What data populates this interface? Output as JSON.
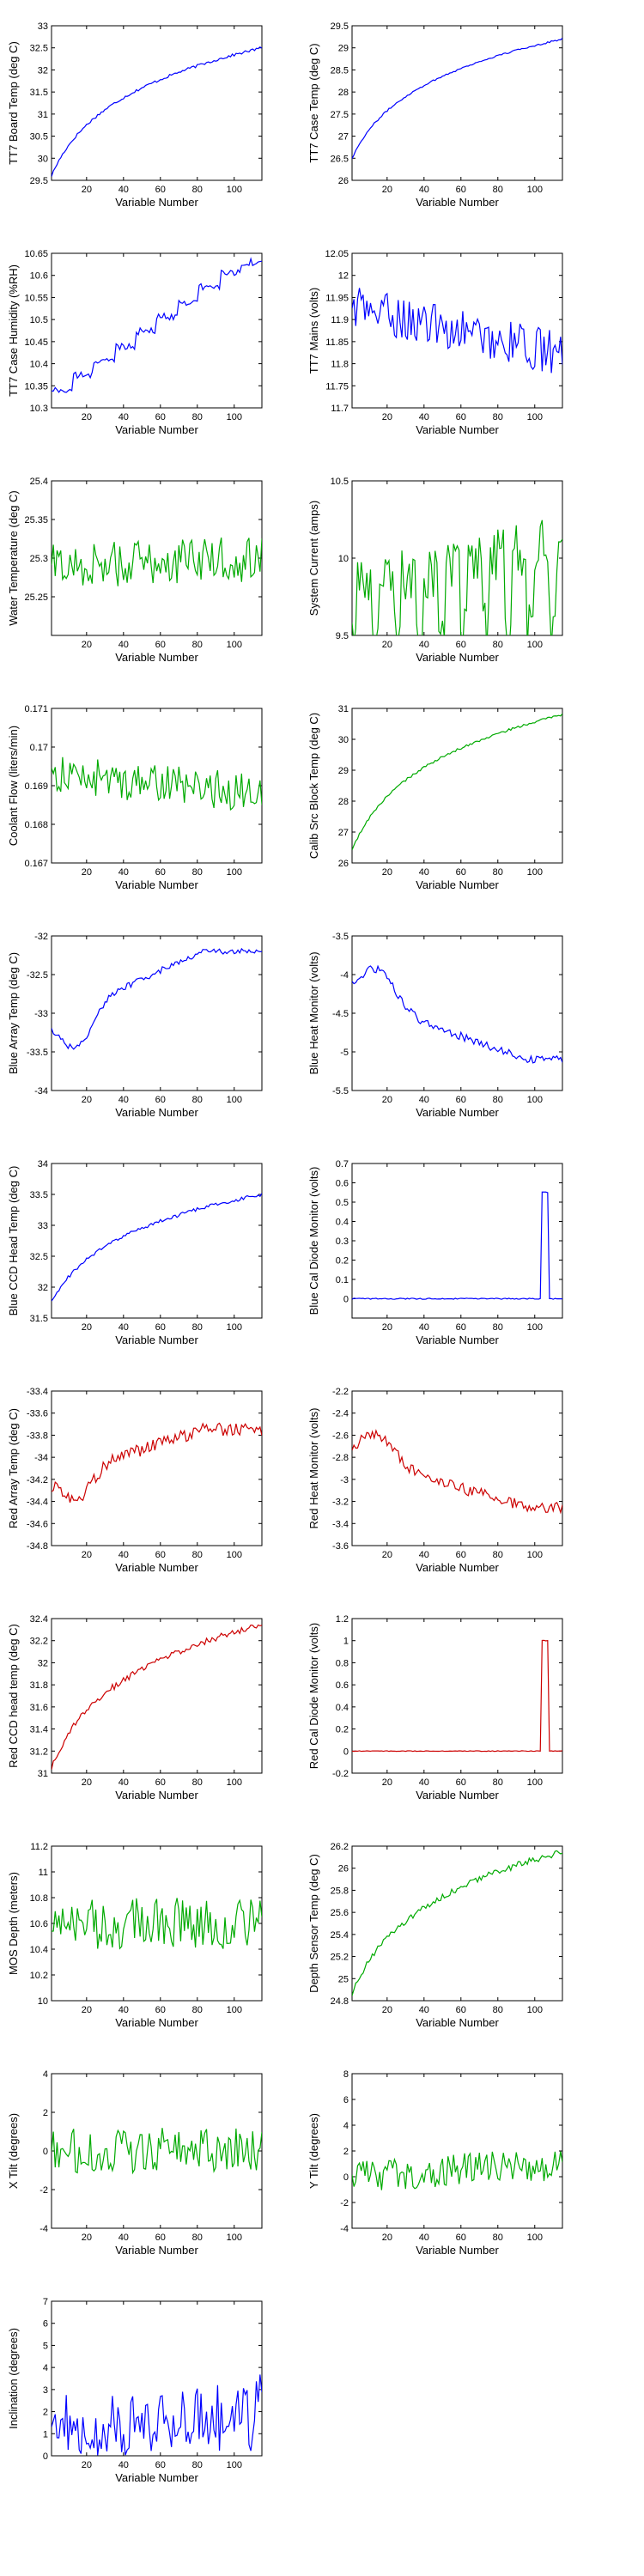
{
  "colors": {
    "blue": "#0000ff",
    "green": "#00aa00",
    "red": "#cc0000"
  },
  "chart_data": [
    {
      "type": "line",
      "ylabel": "TT7 Board Temp (deg C)",
      "xlabel": "Variable Number",
      "xlim": [
        1,
        115
      ],
      "xticks": [
        20,
        40,
        60,
        80,
        100
      ],
      "ylim": [
        29.5,
        33
      ],
      "yticks": [
        29.5,
        30,
        30.5,
        31,
        31.5,
        32,
        32.5,
        33
      ],
      "color": "blue",
      "shape": "log",
      "start": 29.6,
      "end": 32.5,
      "noise": 0.03
    },
    {
      "type": "line",
      "ylabel": "TT7 Case Temp (deg C)",
      "xlabel": "Variable Number",
      "xlim": [
        1,
        115
      ],
      "xticks": [
        20,
        40,
        60,
        80,
        100
      ],
      "ylim": [
        26,
        29.5
      ],
      "yticks": [
        26,
        26.5,
        27,
        27.5,
        28,
        28.5,
        29,
        29.5
      ],
      "color": "blue",
      "shape": "log",
      "start": 26.5,
      "end": 29.2,
      "noise": 0.02
    },
    {
      "type": "line",
      "ylabel": "TT7 Case Humidity (%RH)",
      "xlabel": "Variable Number",
      "xlim": [
        1,
        115
      ],
      "xticks": [
        20,
        40,
        60,
        80,
        100
      ],
      "ylim": [
        10.3,
        10.65
      ],
      "yticks": [
        10.3,
        10.35,
        10.4,
        10.45,
        10.5,
        10.55,
        10.6,
        10.65
      ],
      "color": "blue",
      "shape": "step",
      "start": 10.34,
      "end": 10.63,
      "noise": 0.008
    },
    {
      "type": "line",
      "ylabel": "TT7 Mains (volts)",
      "xlabel": "Variable Number",
      "xlim": [
        1,
        115
      ],
      "xticks": [
        20,
        40,
        60,
        80,
        100
      ],
      "ylim": [
        11.7,
        12.05
      ],
      "yticks": [
        11.7,
        11.75,
        11.8,
        11.85,
        11.9,
        11.95,
        12,
        12.05
      ],
      "color": "blue",
      "shape": "noise",
      "start": 11.93,
      "end": 11.82,
      "noise": 0.05
    },
    {
      "type": "line",
      "ylabel": "Water Temperature (deg C)",
      "xlabel": "Variable Number",
      "xlim": [
        1,
        115
      ],
      "xticks": [
        20,
        40,
        60,
        80,
        100
      ],
      "ylim": [
        25.2,
        25.4
      ],
      "yticks": [
        25.25,
        25.3,
        25.35,
        25.4
      ],
      "color": "green",
      "shape": "noise",
      "start": 25.29,
      "end": 25.3,
      "noise": 0.03
    },
    {
      "type": "line",
      "ylabel": "System Current (amps)",
      "xlabel": "Variable Number",
      "xlim": [
        1,
        115
      ],
      "xticks": [
        20,
        40,
        60,
        80,
        100
      ],
      "ylim": [
        9.5,
        10.5
      ],
      "yticks": [
        9.5,
        10,
        10.5
      ],
      "color": "green",
      "shape": "toggle",
      "start": 9.8,
      "end": 10.1,
      "noise": 0.3
    },
    {
      "type": "line",
      "ylabel": "Coolant Flow (liters/min)",
      "xlabel": "Variable Number",
      "xlim": [
        1,
        115
      ],
      "xticks": [
        20,
        40,
        60,
        80,
        100
      ],
      "ylim": [
        0.167,
        0.171
      ],
      "yticks": [
        0.167,
        0.168,
        0.169,
        0.17,
        0.171
      ],
      "color": "green",
      "shape": "noise",
      "start": 0.1693,
      "end": 0.1688,
      "noise": 0.0005
    },
    {
      "type": "line",
      "ylabel": "Calib Src Block Temp (deg C)",
      "xlabel": "Variable Number",
      "xlim": [
        1,
        115
      ],
      "xticks": [
        20,
        40,
        60,
        80,
        100
      ],
      "ylim": [
        26,
        31
      ],
      "yticks": [
        26,
        27,
        28,
        29,
        30,
        31
      ],
      "color": "green",
      "shape": "log",
      "start": 26.4,
      "end": 30.8,
      "noise": 0.04
    },
    {
      "type": "line",
      "ylabel": "Blue Array Temp (deg C)",
      "xlabel": "Variable Number",
      "xlim": [
        1,
        115
      ],
      "xticks": [
        20,
        40,
        60,
        80,
        100
      ],
      "ylim": [
        -34,
        -32
      ],
      "yticks": [
        -34,
        -33.5,
        -33,
        -32.5,
        -32
      ],
      "color": "blue",
      "shape": "dip",
      "start": -33.1,
      "end": -32.2,
      "noise": 0.04
    },
    {
      "type": "line",
      "ylabel": "Blue Heat Monitor (volts)",
      "xlabel": "Variable Number",
      "xlim": [
        1,
        115
      ],
      "xticks": [
        20,
        40,
        60,
        80,
        100
      ],
      "ylim": [
        -5.5,
        -3.5
      ],
      "yticks": [
        -5.5,
        -5,
        -4.5,
        -4,
        -3.5
      ],
      "color": "blue",
      "shape": "hump",
      "start": -4.3,
      "end": -5.1,
      "noise": 0.05
    },
    {
      "type": "line",
      "ylabel": "Blue CCD Head Temp (deg C)",
      "xlabel": "Variable Number",
      "xlim": [
        1,
        115
      ],
      "xticks": [
        20,
        40,
        60,
        80,
        100
      ],
      "ylim": [
        31.5,
        34
      ],
      "yticks": [
        31.5,
        32,
        32.5,
        33,
        33.5,
        34
      ],
      "color": "blue",
      "shape": "log",
      "start": 31.75,
      "end": 33.5,
      "noise": 0.03
    },
    {
      "type": "line",
      "ylabel": "Blue Cal Diode Monitor (volts)",
      "xlabel": "Variable Number",
      "xlim": [
        1,
        115
      ],
      "xticks": [
        20,
        40,
        60,
        80,
        100
      ],
      "ylim": [
        -0.1,
        0.7
      ],
      "yticks": [
        0,
        0.1,
        0.2,
        0.3,
        0.4,
        0.5,
        0.6,
        0.7
      ],
      "color": "blue",
      "shape": "pulse",
      "start": 0,
      "end": 0.55,
      "noise": 0.003
    },
    {
      "type": "line",
      "ylabel": "Red Array Temp (deg C)",
      "xlabel": "Variable Number",
      "xlim": [
        1,
        115
      ],
      "xticks": [
        20,
        40,
        60,
        80,
        100
      ],
      "ylim": [
        -34.8,
        -33.4
      ],
      "yticks": [
        -34.8,
        -34.6,
        -34.4,
        -34.2,
        -34,
        -33.8,
        -33.6,
        -33.4
      ],
      "color": "red",
      "shape": "dip",
      "start": -34.2,
      "end": -33.75,
      "noise": 0.06
    },
    {
      "type": "line",
      "ylabel": "Red Heat Monitor (volts)",
      "xlabel": "Variable Number",
      "xlim": [
        1,
        115
      ],
      "xticks": [
        20,
        40,
        60,
        80,
        100
      ],
      "ylim": [
        -3.6,
        -2.2
      ],
      "yticks": [
        -3.6,
        -3.4,
        -3.2,
        -3,
        -2.8,
        -2.6,
        -2.4,
        -2.2
      ],
      "color": "red",
      "shape": "hump",
      "start": -2.8,
      "end": -3.25,
      "noise": 0.05
    },
    {
      "type": "line",
      "ylabel": "Red CCD head temp (deg C)",
      "xlabel": "Variable Number",
      "xlim": [
        1,
        115
      ],
      "xticks": [
        20,
        40,
        60,
        80,
        100
      ],
      "ylim": [
        31,
        32.4
      ],
      "yticks": [
        31,
        31.2,
        31.4,
        31.6,
        31.8,
        32,
        32.2,
        32.4
      ],
      "color": "red",
      "shape": "log",
      "start": 31.05,
      "end": 32.35,
      "noise": 0.03
    },
    {
      "type": "line",
      "ylabel": "Red Cal Diode Monitor (volts)",
      "xlabel": "Variable Number",
      "xlim": [
        1,
        115
      ],
      "xticks": [
        20,
        40,
        60,
        80,
        100
      ],
      "ylim": [
        -0.2,
        1.2
      ],
      "yticks": [
        -0.2,
        0,
        0.2,
        0.4,
        0.6,
        0.8,
        1,
        1.2
      ],
      "color": "red",
      "shape": "pulse",
      "start": 0,
      "end": 1.0,
      "noise": 0.003
    },
    {
      "type": "line",
      "ylabel": "MOS Depth (meters)",
      "xlabel": "Variable Number",
      "xlim": [
        1,
        115
      ],
      "xticks": [
        20,
        40,
        60,
        80,
        100
      ],
      "ylim": [
        10,
        11.2
      ],
      "yticks": [
        10,
        10.2,
        10.4,
        10.6,
        10.8,
        11,
        11.2
      ],
      "color": "green",
      "shape": "noise",
      "start": 10.6,
      "end": 10.6,
      "noise": 0.2
    },
    {
      "type": "line",
      "ylabel": "Depth Sensor Temp (deg C)",
      "xlabel": "Variable Number",
      "xlim": [
        1,
        115
      ],
      "xticks": [
        20,
        40,
        60,
        80,
        100
      ],
      "ylim": [
        24.8,
        26.2
      ],
      "yticks": [
        24.8,
        25,
        25.2,
        25.4,
        25.6,
        25.8,
        26,
        26.2
      ],
      "color": "green",
      "shape": "log",
      "start": 24.85,
      "end": 26.15,
      "noise": 0.03
    },
    {
      "type": "line",
      "ylabel": "X Tilt (degrees)",
      "xlabel": "Variable Number",
      "xlim": [
        1,
        115
      ],
      "xticks": [
        20,
        40,
        60,
        80,
        100
      ],
      "ylim": [
        -4,
        4
      ],
      "yticks": [
        -4,
        -2,
        0,
        2,
        4
      ],
      "color": "green",
      "shape": "noise",
      "start": 0,
      "end": 0,
      "noise": 1.2
    },
    {
      "type": "line",
      "ylabel": "Y Tilt (degrees)",
      "xlabel": "Variable Number",
      "xlim": [
        1,
        115
      ],
      "xticks": [
        20,
        40,
        60,
        80,
        100
      ],
      "ylim": [
        -4,
        8
      ],
      "yticks": [
        -4,
        -2,
        0,
        2,
        4,
        6,
        8
      ],
      "color": "green",
      "shape": "noise",
      "start": 0,
      "end": 1,
      "noise": 1.3
    },
    {
      "type": "line",
      "ylabel": "Inclination (degrees)",
      "xlabel": "Variable Number",
      "xlim": [
        1,
        115
      ],
      "xticks": [
        20,
        40,
        60,
        80,
        100
      ],
      "ylim": [
        0,
        7
      ],
      "yticks": [
        0,
        1,
        2,
        3,
        4,
        5,
        6,
        7
      ],
      "color": "blue",
      "shape": "abs",
      "start": 1,
      "end": 2,
      "noise": 1.3
    }
  ]
}
